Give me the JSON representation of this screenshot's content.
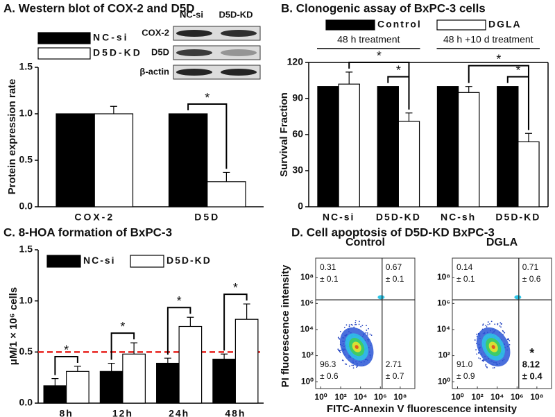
{
  "chart_data": [
    {
      "type": "bar",
      "title": "A. Western blot of COX-2 and D5D",
      "ylabel": "Protein expression rate",
      "categories": [
        "COX-2",
        "D5D"
      ],
      "series": [
        {
          "name": "NC-si",
          "color": "#000000",
          "values": [
            1.0,
            1.0
          ]
        },
        {
          "name": "D5D-KD",
          "color": "#ffffff",
          "values": [
            1.0,
            0.27
          ],
          "errors": [
            0.08,
            0.1
          ]
        }
      ],
      "ylim": [
        0,
        1.5
      ],
      "yticks": [
        {
          "value": 0,
          "label": "0.0"
        },
        {
          "value": 0.5,
          "label": "0.5"
        },
        {
          "value": 1,
          "label": "1.0"
        },
        {
          "value": 1.5,
          "label": "1.5"
        }
      ],
      "significance": [
        {
          "label": "*",
          "from": [
            0,
            1
          ],
          "to": [
            1,
            1
          ]
        }
      ],
      "blot": {
        "columns": [
          "NC-si",
          "D5D-KD"
        ],
        "rows": [
          "COX-2",
          "D5D",
          "β-actin"
        ]
      }
    },
    {
      "type": "bar",
      "title": "B. Clonogenic assay of BxPC-3 cells",
      "ylabel": "Survival Fraction",
      "categories": [
        "NC-si",
        "D5D-KD",
        "NC-sh",
        "D5D-KD"
      ],
      "series": [
        {
          "name": "Control",
          "color": "#000000",
          "values": [
            100,
            100,
            100,
            100
          ]
        },
        {
          "name": "DGLA",
          "color": "#ffffff",
          "values": [
            102,
            71,
            95,
            54
          ],
          "errors": [
            10,
            7,
            5,
            7
          ]
        }
      ],
      "ylim": [
        0,
        120
      ],
      "yticks": [
        0,
        30,
        60,
        90,
        120
      ],
      "box": true,
      "groups": [
        {
          "label": "48 h treatment",
          "span": [
            0,
            1
          ]
        },
        {
          "label": "48 h +10 d treatment",
          "span": [
            2,
            3
          ]
        }
      ],
      "significance": [
        {
          "label": "*",
          "from": [
            0,
            1
          ],
          "to": [
            1,
            1
          ]
        },
        {
          "label": "*",
          "from": [
            1,
            0
          ],
          "to": [
            1,
            1
          ]
        },
        {
          "label": "*",
          "from": [
            0,
            3
          ],
          "to": [
            1,
            3
          ]
        },
        {
          "label": "*",
          "from": [
            1,
            2
          ],
          "to": [
            1,
            3
          ]
        }
      ]
    },
    {
      "type": "bar",
      "title": "C. 8-HOA formation of BxPC-3",
      "ylabel": "μM/1 × 10⁶ cells",
      "categories": [
        "8h",
        "12h",
        "24h",
        "48h"
      ],
      "series": [
        {
          "name": "NC-si",
          "color": "#000000",
          "values": [
            0.17,
            0.31,
            0.39,
            0.43
          ],
          "errors": [
            0.07,
            0.08,
            0.05,
            0.05
          ]
        },
        {
          "name": "D5D-KD",
          "color": "#ffffff",
          "values": [
            0.31,
            0.48,
            0.75,
            0.82
          ],
          "errors": [
            0.05,
            0.11,
            0.09,
            0.15
          ]
        }
      ],
      "ylim": [
        0,
        1.5
      ],
      "yticks": [
        {
          "value": 0,
          "label": "0.0"
        },
        {
          "value": 0.5,
          "label": "0.5"
        },
        {
          "value": 1,
          "label": "1.0"
        },
        {
          "value": 1.5,
          "label": "1.5"
        }
      ],
      "hline": {
        "value": 0.5,
        "color": "#e8211d"
      },
      "significance": [
        {
          "label": "*",
          "from": [
            0,
            0
          ],
          "to": [
            1,
            0
          ]
        },
        {
          "label": "*",
          "from": [
            0,
            1
          ],
          "to": [
            1,
            1
          ]
        },
        {
          "label": "*",
          "from": [
            0,
            2
          ],
          "to": [
            1,
            2
          ]
        },
        {
          "label": "*",
          "from": [
            0,
            3
          ],
          "to": [
            1,
            3
          ]
        }
      ]
    },
    {
      "type": "quadrant",
      "title": "D. Cell apoptosis of D5D-KD BxPC-3",
      "xlabel": "FITC-Annexin V fluorescence intensity",
      "ylabel": "PI fluorescence intensity",
      "log": true,
      "xlim": [
        0.3,
        3000000000
      ],
      "ylim": [
        0.3,
        3000000000
      ],
      "xticks": [
        {
          "value": 1,
          "label": "10⁰"
        },
        {
          "value": 100,
          "label": "10²"
        },
        {
          "value": 10000,
          "label": "10⁴"
        },
        {
          "value": 1000000,
          "label": "10⁶"
        },
        {
          "value": 100000000,
          "label": "10⁸"
        }
      ],
      "yticks": [
        {
          "value": 1,
          "label": "10⁰"
        },
        {
          "value": 100,
          "label": "10²"
        },
        {
          "value": 10000,
          "label": "10⁴"
        },
        {
          "value": 1000000,
          "label": "10⁶"
        },
        {
          "value": 100000000,
          "label": "10⁸"
        }
      ],
      "panels": [
        {
          "title": "Control",
          "values": [
            0.31,
            0.67,
            96.3,
            2.71
          ],
          "errors": [
            0.1,
            0.1,
            0.6,
            0.7
          ],
          "error_labels": [
            "± 0.1",
            "± 0.1",
            "± 0.6",
            "± 0.7"
          ]
        },
        {
          "title": "DGLA",
          "values": [
            0.14,
            0.71,
            91.0,
            8.12
          ],
          "value_labels": [
            "0.14",
            "0.71",
            "91.0",
            "8.12"
          ],
          "errors": [
            0.1,
            0.6,
            0.9,
            0.4
          ],
          "error_labels": [
            "± 0.1",
            "± 0.6",
            "± 0.9",
            "± 0.4"
          ],
          "significance": {
            "label": "*",
            "quadrant": 3
          }
        }
      ]
    }
  ]
}
